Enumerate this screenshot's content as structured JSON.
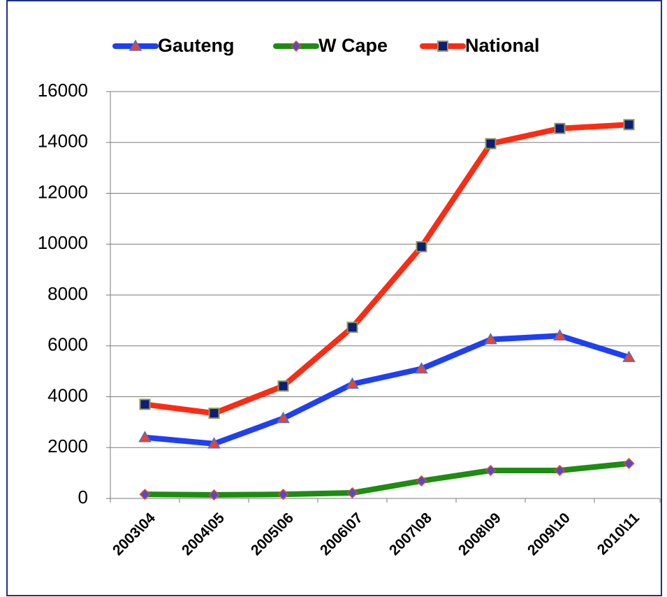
{
  "chart_data": {
    "type": "line",
    "categories": [
      "2003\\04",
      "2004\\05",
      "2005\\06",
      "2006\\07",
      "2007\\08",
      "2008\\09",
      "2009\\10",
      "2010\\11"
    ],
    "series": [
      {
        "name": "Gauteng",
        "color": "#1f3ff5",
        "marker": "triangle",
        "values": [
          2400,
          2150,
          3150,
          4500,
          5100,
          6250,
          6400,
          5550
        ]
      },
      {
        "name": "W Cape",
        "color": "#1e8c12",
        "marker": "diamond",
        "values": [
          160,
          140,
          160,
          220,
          690,
          1100,
          1100,
          1375
        ]
      },
      {
        "name": "National",
        "color": "#ff2a12",
        "marker": "square",
        "values": [
          3700,
          3350,
          4420,
          6730,
          9900,
          13950,
          14550,
          14700
        ]
      }
    ],
    "ylim": [
      0,
      16000
    ],
    "yticks": [
      0,
      2000,
      4000,
      6000,
      8000,
      10000,
      12000,
      14000,
      16000
    ],
    "grid": true,
    "legend": "top"
  }
}
